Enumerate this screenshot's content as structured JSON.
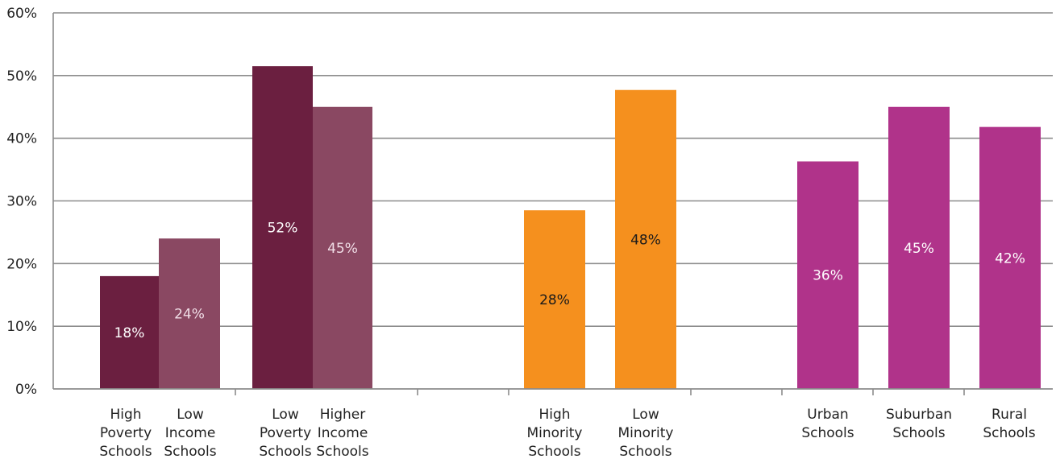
{
  "chart_data": {
    "type": "bar",
    "title": "",
    "xlabel": "",
    "ylabel": "",
    "ylim": [
      0,
      60
    ],
    "yticks": [
      "0%",
      "10%",
      "20%",
      "30%",
      "40%",
      "50%",
      "60%"
    ],
    "grid": true,
    "legend": "none",
    "colors": {
      "dark_plum": "#6b1f40",
      "light_plum": "#8a4862",
      "orange": "#f5901e",
      "magenta": "#b0338a"
    },
    "bars": [
      {
        "label": [
          "High",
          "Poverty",
          "Schools"
        ],
        "value": 18,
        "value_label": "18%",
        "color": "#6b1f40",
        "label_color": "#ffffff"
      },
      {
        "label": [
          "Low",
          "Income",
          "Schools"
        ],
        "value": 24,
        "value_label": "24%",
        "color": "#8a4862",
        "label_color": "#f0dde6"
      },
      {
        "label": [
          "Low",
          "Poverty",
          "Schools"
        ],
        "value": 51.5,
        "value_label": "52%",
        "color": "#6b1f40",
        "label_color": "#ffffff"
      },
      {
        "label": [
          "Higher",
          "Income",
          "Schools"
        ],
        "value": 45,
        "value_label": "45%",
        "color": "#8a4862",
        "label_color": "#f0dde6"
      },
      {
        "label": [
          "High",
          "Minority",
          "Schools"
        ],
        "value": 28.5,
        "value_label": "28%",
        "color": "#f5901e",
        "label_color": "#1a1a1a"
      },
      {
        "label": [
          "Low",
          "Minority",
          "Schools"
        ],
        "value": 47.7,
        "value_label": "48%",
        "color": "#f5901e",
        "label_color": "#1a1a1a"
      },
      {
        "label": [
          "Urban",
          "Schools"
        ],
        "value": 36.3,
        "value_label": "36%",
        "color": "#b0338a",
        "label_color": "#ffffff"
      },
      {
        "label": [
          "Suburban",
          "Schools"
        ],
        "value": 45,
        "value_label": "45%",
        "color": "#b0338a",
        "label_color": "#ffffff"
      },
      {
        "label": [
          "Rural",
          "Schools"
        ],
        "value": 41.8,
        "value_label": "42%",
        "color": "#b0338a",
        "label_color": "#ffffff"
      }
    ]
  }
}
